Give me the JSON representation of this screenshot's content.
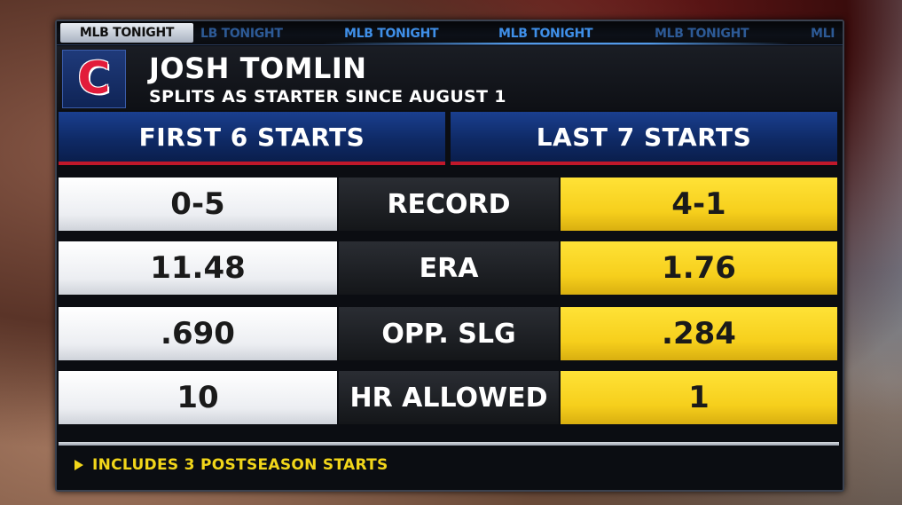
{
  "ticker": {
    "active": "MLB TONIGHT",
    "items": [
      "LB TONIGHT",
      "MLB TONIGHT",
      "MLB TONIGHT",
      "MLB TONIGHT",
      "MLI"
    ]
  },
  "header": {
    "logo_letter": "C",
    "player_name": "JOSH TOMLIN",
    "subtitle": "SPLITS AS STARTER SINCE AUGUST 1"
  },
  "columns": {
    "left": "FIRST 6 STARTS",
    "right": "LAST 7 STARTS"
  },
  "rows": [
    {
      "left": "0-5",
      "label": "RECORD",
      "right": "4-1"
    },
    {
      "left": "11.48",
      "label": "ERA",
      "right": "1.76"
    },
    {
      "left": ".690",
      "label": "OPP. SLG",
      "right": ".284"
    },
    {
      "left": "10",
      "label": "HR ALLOWED",
      "right": "1"
    }
  ],
  "footnote": "INCLUDES 3 POSTSEASON STARTS",
  "colors": {
    "header_blue": "#0f2a66",
    "accent_red": "#c0182a",
    "highlight_yellow": "#f6cf1c",
    "footnote_yellow": "#f2d61a"
  },
  "icons": {
    "footnote_marker": "triangle-right-icon"
  }
}
